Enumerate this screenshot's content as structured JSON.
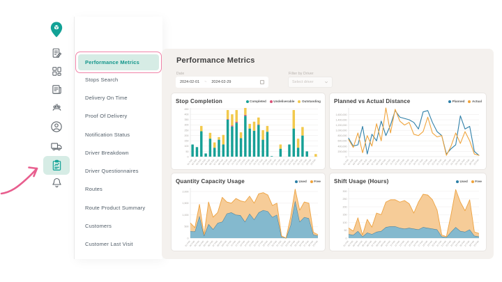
{
  "app": {
    "accent_teal": "#12a296",
    "highlight_bg": "#d6ece5",
    "annotation_pink": "#f083a8",
    "arrow_pink": "#e85e8e",
    "panel_bg": "#f4f1ee"
  },
  "icon_rail": {
    "items": [
      {
        "icon": "location-pin-logo-icon",
        "active": false
      },
      {
        "icon": "report-edit-icon",
        "active": false
      },
      {
        "icon": "dashboard-grid-icon",
        "active": false
      },
      {
        "icon": "news-clipboard-icon",
        "active": false
      },
      {
        "icon": "team-icon",
        "active": false
      },
      {
        "icon": "profile-icon",
        "active": false
      },
      {
        "icon": "truck-icon",
        "active": false
      },
      {
        "icon": "performance-report-icon",
        "active": true
      },
      {
        "icon": "bell-icon",
        "active": false
      }
    ]
  },
  "sidebar": {
    "items": [
      {
        "label": "Performance Metrics",
        "active": true
      },
      {
        "label": "Stops Search",
        "active": false
      },
      {
        "label": "Delivery On Time",
        "active": false
      },
      {
        "label": "Proof Of Delivery",
        "active": false
      },
      {
        "label": "Notification Status",
        "active": false
      },
      {
        "label": "Driver Breakdown",
        "active": false
      },
      {
        "label": "Driver Questionnaires",
        "active": false
      },
      {
        "label": "Routes",
        "active": false
      },
      {
        "label": "Route Product Summary",
        "active": false
      },
      {
        "label": "Customers",
        "active": false
      },
      {
        "label": "Customer Last Visit",
        "active": false
      }
    ]
  },
  "main": {
    "title": "Performance Metrics",
    "date_filter": {
      "label": "Date",
      "start": "2024-02-01",
      "separator": "~",
      "end": "2024-02-29"
    },
    "driver_filter": {
      "label": "Filter by Driver",
      "placeholder": "Select driver"
    }
  },
  "chart_data": [
    {
      "type": "bar",
      "title": "Stop Completion",
      "stacked": true,
      "legend_position": "top-right",
      "grid": true,
      "ylim": [
        0,
        460
      ],
      "yticks": [
        0,
        50,
        100,
        150,
        200,
        250,
        300,
        350,
        400,
        450
      ],
      "categories": [
        "01 Feb",
        "02 Feb",
        "03 Feb",
        "04 Feb",
        "05 Feb",
        "06 Feb",
        "07 Feb",
        "08 Feb",
        "09 Feb",
        "10 Feb",
        "11 Feb",
        "12 Feb",
        "13 Feb",
        "14 Feb",
        "15 Feb",
        "16 Feb",
        "17 Feb",
        "18 Feb",
        "19 Feb",
        "20 Feb",
        "21 Feb",
        "22 Feb",
        "23 Feb",
        "24 Feb",
        "25 Feb",
        "26 Feb",
        "27 Feb",
        "28 Feb",
        "29 Feb"
      ],
      "series": [
        {
          "name": "Completed",
          "color": "#17a096",
          "dot": "#17a096",
          "values": [
            115,
            90,
            240,
            30,
            170,
            85,
            160,
            115,
            350,
            285,
            320,
            175,
            385,
            265,
            245,
            300,
            160,
            235,
            5,
            0,
            75,
            0,
            115,
            265,
            85,
            200,
            50,
            0,
            0
          ]
        },
        {
          "name": "Undeliverable",
          "color": "#d95479",
          "dot": "#d95479",
          "values": [
            0,
            0,
            0,
            0,
            0,
            0,
            0,
            0,
            5,
            10,
            10,
            0,
            10,
            0,
            0,
            5,
            0,
            0,
            0,
            0,
            0,
            0,
            0,
            0,
            0,
            0,
            0,
            0,
            0
          ]
        },
        {
          "name": "Outstanding",
          "color": "#f2c94c",
          "dot": "#f2c94c",
          "values": [
            0,
            0,
            50,
            0,
            55,
            50,
            25,
            90,
            85,
            105,
            110,
            55,
            65,
            45,
            85,
            65,
            90,
            55,
            0,
            0,
            40,
            0,
            0,
            175,
            85,
            80,
            0,
            0,
            25
          ]
        }
      ]
    },
    {
      "type": "line",
      "title": "Planned vs Actual Distance",
      "stacked": false,
      "legend_position": "top-right",
      "grid": true,
      "ylim": [
        0,
        1850000
      ],
      "yticks": [
        0,
        200000,
        400000,
        600000,
        800000,
        1000000,
        1200000,
        1400000,
        1600000
      ],
      "categories": [
        "01 Feb",
        "02 Feb",
        "03 Feb",
        "04 Feb",
        "05 Feb",
        "06 Feb",
        "07 Feb",
        "08 Feb",
        "09 Feb",
        "10 Feb",
        "11 Feb",
        "12 Feb",
        "13 Feb",
        "14 Feb",
        "15 Feb",
        "16 Feb",
        "17 Feb",
        "18 Feb",
        "19 Feb",
        "20 Feb",
        "21 Feb",
        "22 Feb",
        "23 Feb",
        "24 Feb",
        "25 Feb",
        "26 Feb",
        "27 Feb",
        "28 Feb",
        "29 Feb"
      ],
      "series": [
        {
          "name": "Planned",
          "color": "#2e7fa8",
          "dot": "#2e7fa8",
          "values": [
            700000,
            400000,
            450000,
            1150000,
            100000,
            850000,
            600000,
            1350000,
            800000,
            1200000,
            1750000,
            1500000,
            1450000,
            1400000,
            1300000,
            1050000,
            1700000,
            1750000,
            1300000,
            950000,
            800000,
            100000,
            300000,
            450000,
            1550000,
            1050000,
            1150000,
            200000,
            50000
          ]
        },
        {
          "name": "Actual",
          "color": "#f0a43c",
          "dot": "#f0a43c",
          "values": [
            650000,
            350000,
            900000,
            150000,
            800000,
            400000,
            1250000,
            600000,
            1850000,
            900000,
            1800000,
            1350000,
            1200000,
            1300000,
            850000,
            800000,
            950000,
            1500000,
            900000,
            750000,
            800000,
            50000,
            400000,
            900000,
            500000,
            950000,
            600000,
            100000,
            50000
          ]
        }
      ]
    },
    {
      "type": "area",
      "title": "Quantity Capacity Usage",
      "stacked": true,
      "legend_position": "top-right",
      "grid": true,
      "ylim": [
        0,
        2150
      ],
      "yticks": [
        0,
        500,
        1000,
        1500,
        2000
      ],
      "categories": [
        "01 Feb",
        "02 Feb",
        "03 Feb",
        "04 Feb",
        "05 Feb",
        "06 Feb",
        "07 Feb",
        "08 Feb",
        "09 Feb",
        "10 Feb",
        "11 Feb",
        "12 Feb",
        "13 Feb",
        "14 Feb",
        "15 Feb",
        "16 Feb",
        "17 Feb",
        "18 Feb",
        "19 Feb",
        "20 Feb",
        "21 Feb",
        "22 Feb",
        "23 Feb",
        "24 Feb",
        "25 Feb",
        "26 Feb",
        "27 Feb",
        "28 Feb",
        "29 Feb"
      ],
      "series": [
        {
          "name": "Used",
          "color": "#7db5cb",
          "stroke": "#39789a",
          "dot": "#2b7fa6",
          "values": [
            300,
            280,
            950,
            100,
            600,
            380,
            650,
            700,
            1050,
            1100,
            1000,
            980,
            700,
            1050,
            800,
            1100,
            1200,
            1150,
            900,
            1000,
            50,
            0,
            550,
            1600,
            700,
            900,
            850,
            150,
            100
          ]
        },
        {
          "name": "Free",
          "color": "#f6c992",
          "stroke": "#eda240",
          "dot": "#f0a43c",
          "values": [
            350,
            170,
            500,
            50,
            950,
            520,
            450,
            1050,
            500,
            400,
            700,
            620,
            850,
            750,
            700,
            800,
            750,
            700,
            500,
            500,
            50,
            0,
            350,
            500,
            500,
            650,
            650,
            100,
            50
          ]
        }
      ]
    },
    {
      "type": "area",
      "title": "Shift Usage (Hours)",
      "stacked": true,
      "legend_position": "top-right",
      "grid": true,
      "ylim": [
        0,
        320
      ],
      "yticks": [
        0,
        50,
        100,
        150,
        200,
        250,
        300
      ],
      "categories": [
        "01 Feb",
        "02 Feb",
        "03 Feb",
        "04 Feb",
        "05 Feb",
        "06 Feb",
        "07 Feb",
        "08 Feb",
        "09 Feb",
        "10 Feb",
        "11 Feb",
        "12 Feb",
        "13 Feb",
        "14 Feb",
        "15 Feb",
        "16 Feb",
        "17 Feb",
        "18 Feb",
        "19 Feb",
        "20 Feb",
        "21 Feb",
        "22 Feb",
        "23 Feb",
        "24 Feb",
        "25 Feb",
        "26 Feb",
        "27 Feb",
        "28 Feb",
        "29 Feb"
      ],
      "series": [
        {
          "name": "Used",
          "color": "#7db5cb",
          "stroke": "#39789a",
          "dot": "#2b7fa6",
          "values": [
            25,
            20,
            45,
            10,
            35,
            25,
            40,
            45,
            70,
            75,
            75,
            65,
            60,
            65,
            60,
            55,
            70,
            65,
            60,
            55,
            10,
            5,
            40,
            70,
            45,
            40,
            55,
            15,
            10
          ]
        },
        {
          "name": "Free",
          "color": "#f6c992",
          "stroke": "#eda240",
          "dot": "#f0a43c",
          "values": [
            40,
            25,
            85,
            10,
            85,
            45,
            120,
            105,
            160,
            170,
            170,
            165,
            180,
            155,
            100,
            175,
            210,
            210,
            185,
            125,
            10,
            5,
            110,
            240,
            185,
            135,
            190,
            25,
            20
          ]
        }
      ]
    }
  ]
}
